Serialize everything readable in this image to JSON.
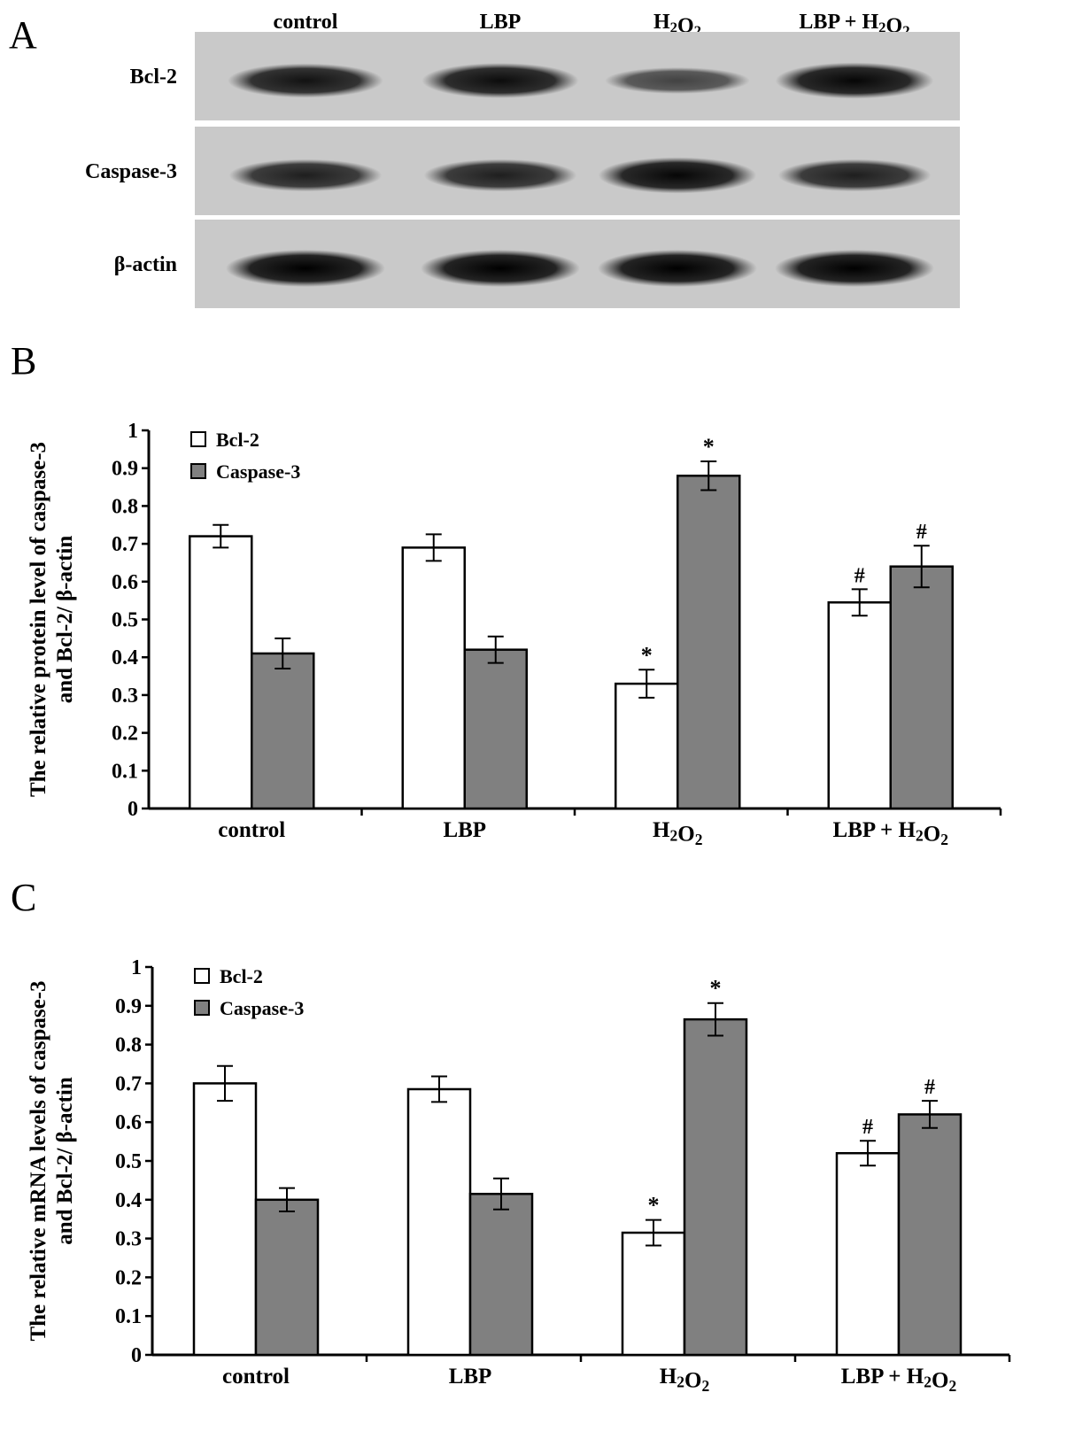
{
  "panels": {
    "a": "A",
    "b": "B",
    "c": "C"
  },
  "blot": {
    "lane_labels": [
      "control",
      "LBP",
      "H2O2",
      "LBP + H2O2"
    ],
    "rows": [
      {
        "label": "Bcl-2",
        "intensity": [
          0.85,
          0.9,
          0.45,
          0.95
        ]
      },
      {
        "label": "Caspase-3",
        "intensity": [
          0.75,
          0.75,
          0.95,
          0.75
        ]
      },
      {
        "label": "β-actin",
        "intensity": [
          1.0,
          1.0,
          1.0,
          1.0
        ]
      }
    ]
  },
  "chart_data": [
    {
      "type": "bar",
      "categories": [
        "control",
        "LBP",
        "H2O2",
        "LBP + H2O2"
      ],
      "ylabel_lines": [
        "The relative protein level of caspase-3",
        "and Bcl-2/ β-actin"
      ],
      "ylim": [
        0,
        1
      ],
      "yticks": [
        "0",
        "0.1",
        "0.2",
        "0.3",
        "0.4",
        "0.5",
        "0.6",
        "0.7",
        "0.8",
        "0.9",
        "1"
      ],
      "series": [
        {
          "name": "Bcl-2",
          "color": "#ffffff",
          "values": [
            0.72,
            0.69,
            0.33,
            0.545
          ],
          "errors": [
            0.03,
            0.035,
            0.037,
            0.035
          ],
          "marks": [
            "",
            "",
            "*",
            "#"
          ]
        },
        {
          "name": "Caspase-3",
          "color": "#808080",
          "values": [
            0.41,
            0.42,
            0.88,
            0.64
          ],
          "errors": [
            0.04,
            0.035,
            0.038,
            0.055
          ],
          "marks": [
            "",
            "",
            "*",
            "#"
          ]
        }
      ],
      "legend_position": "top-left"
    },
    {
      "type": "bar",
      "categories": [
        "control",
        "LBP",
        "H2O2",
        "LBP + H2O2"
      ],
      "ylabel_lines": [
        "The relative mRNA levels of caspase-3",
        "and Bcl-2/ β-actin"
      ],
      "ylim": [
        0,
        1
      ],
      "yticks": [
        "0",
        "0.1",
        "0.2",
        "0.3",
        "0.4",
        "0.5",
        "0.6",
        "0.7",
        "0.8",
        "0.9",
        "1"
      ],
      "series": [
        {
          "name": "Bcl-2",
          "color": "#ffffff",
          "values": [
            0.7,
            0.685,
            0.315,
            0.52
          ],
          "errors": [
            0.045,
            0.033,
            0.033,
            0.032
          ],
          "marks": [
            "",
            "",
            "*",
            "#"
          ]
        },
        {
          "name": "Caspase-3",
          "color": "#808080",
          "values": [
            0.4,
            0.415,
            0.865,
            0.62
          ],
          "errors": [
            0.03,
            0.04,
            0.042,
            0.035
          ],
          "marks": [
            "",
            "",
            "*",
            "#"
          ]
        }
      ],
      "legend_position": "top-left"
    }
  ]
}
